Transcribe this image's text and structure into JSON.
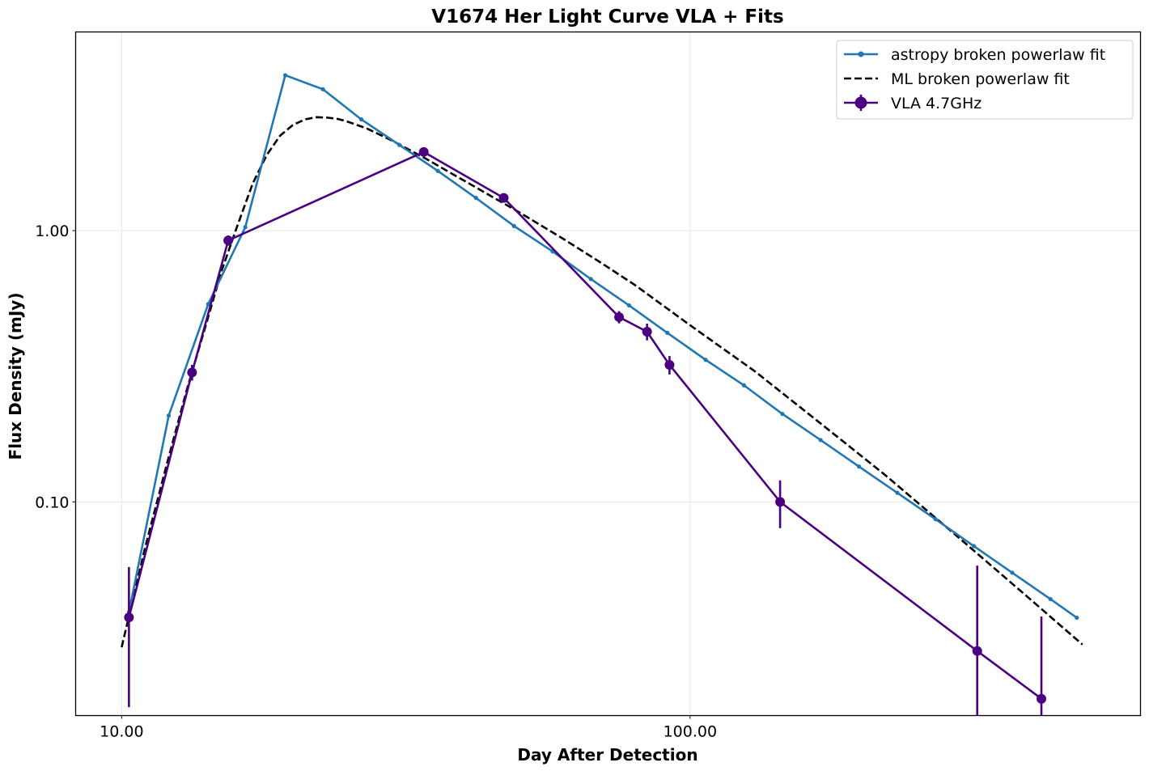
{
  "chart_data": {
    "type": "line",
    "title": "V1674 Her Light Curve VLA + Fits",
    "xlabel": "Day After Detection",
    "ylabel": "Flux Density (mJy)",
    "xscale": "log",
    "yscale": "log",
    "xlim": [
      8.3,
      620
    ],
    "ylim": [
      0.0163,
      5.4
    ],
    "xticks": [
      {
        "value": 10,
        "label": "10.00"
      },
      {
        "value": 100,
        "label": "100.00"
      }
    ],
    "yticks": [
      {
        "value": 0.1,
        "label": "0.10"
      },
      {
        "value": 1.0,
        "label": "1.00"
      }
    ],
    "grid": true,
    "legend_position": "upper right",
    "colors": {
      "astropy": "#1f77b4",
      "ml": "#000000",
      "vla": "#4b0082"
    },
    "series": [
      {
        "name": "astropy broken powerlaw fit",
        "style": "line-with-small-markers",
        "x": [
          10.3,
          12.1,
          14.2,
          16.5,
          19.4,
          22.6,
          26.4,
          30.8,
          36.0,
          42.0,
          49.0,
          57.3,
          66.9,
          78.1,
          91.2,
          106.5,
          124.4,
          145.3,
          169.7,
          198.2,
          231.5,
          270.3,
          315.7,
          368.7,
          430.6,
          479.0
        ],
        "y": [
          0.0393,
          0.208,
          0.536,
          1.03,
          3.74,
          3.32,
          2.57,
          2.07,
          1.66,
          1.32,
          1.04,
          0.838,
          0.663,
          0.53,
          0.42,
          0.334,
          0.269,
          0.211,
          0.169,
          0.135,
          0.108,
          0.0863,
          0.0687,
          0.0548,
          0.0438,
          0.0374
        ]
      },
      {
        "name": "ML broken powerlaw fit",
        "style": "dashed",
        "x": [
          10.0,
          10.5,
          11.0,
          12.0,
          13.0,
          14.0,
          15.0,
          16.0,
          17.0,
          18.0,
          19.0,
          20.0,
          21.0,
          22.0,
          23.0,
          24.0,
          25.0,
          27.0,
          30.0,
          34.0,
          40.0,
          50.0,
          60.0,
          70.0,
          80.0,
          100.0,
          130.0,
          170.0,
          220.0,
          300.0,
          400.0,
          490.0
        ],
        "y": [
          0.0291,
          0.045,
          0.068,
          0.137,
          0.256,
          0.434,
          0.714,
          1.05,
          1.49,
          1.9,
          2.24,
          2.45,
          2.57,
          2.62,
          2.61,
          2.58,
          2.52,
          2.38,
          2.14,
          1.86,
          1.53,
          1.17,
          0.929,
          0.757,
          0.63,
          0.448,
          0.303,
          0.194,
          0.126,
          0.0725,
          0.0431,
          0.0298
        ]
      },
      {
        "name": "VLA 4.7GHz",
        "style": "line-with-errorbars",
        "x": [
          10.3,
          13.3,
          15.4,
          34.0,
          47.0,
          75.0,
          84.0,
          92.0,
          144.0,
          320.0,
          415.0
        ],
        "y": [
          0.0375,
          0.3,
          0.92,
          1.95,
          1.32,
          0.48,
          0.424,
          0.32,
          0.1,
          0.0282,
          0.0188
        ],
        "yerr": [
          0.02,
          0.02,
          0.04,
          0.05,
          0.04,
          0.025,
          0.03,
          0.025,
          0.02,
          0.03,
          0.019
        ]
      }
    ]
  }
}
